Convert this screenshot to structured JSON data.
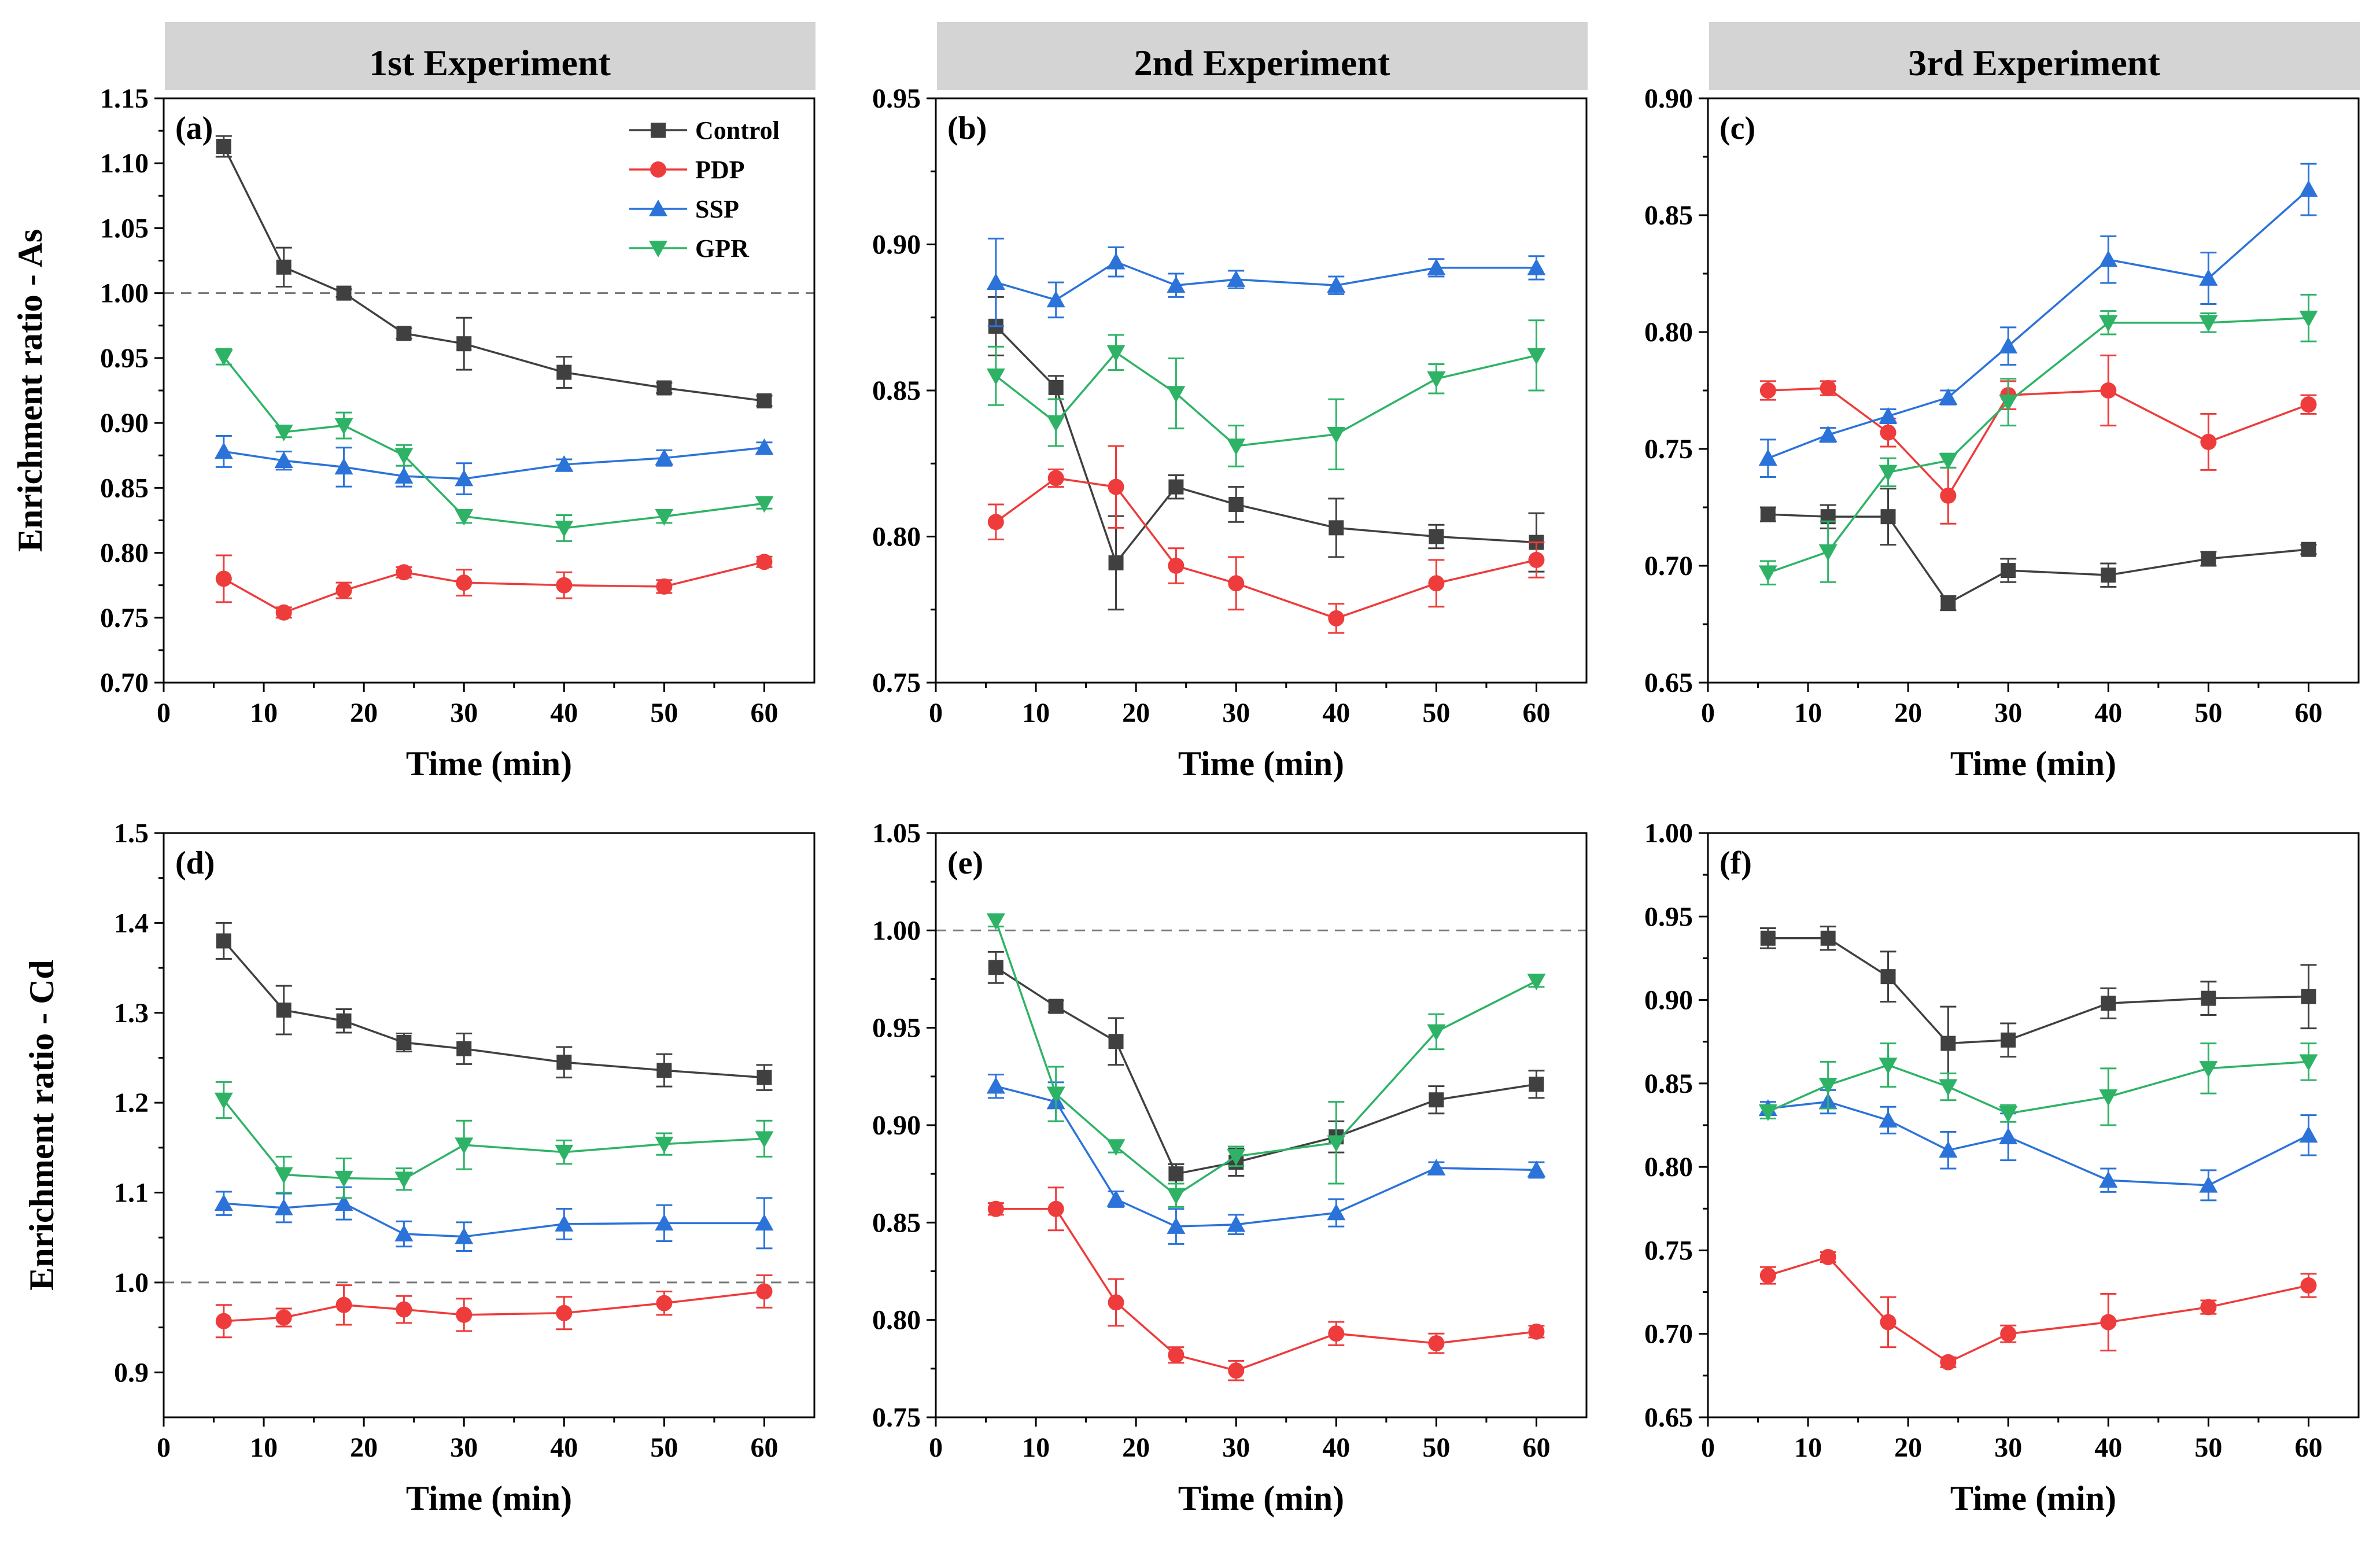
{
  "headers": [
    "1st Experiment",
    "2nd Experiment",
    "3rd Experiment"
  ],
  "colors": {
    "Control": "#404040",
    "PDP": "#ee3b3b",
    "SSP": "#2b73d9",
    "GPR": "#2eb366"
  },
  "chart_data": [
    {
      "type": "line",
      "label": "(a)",
      "ylabel": "Enrichment ratio - As",
      "xlabel": "Time (min)",
      "xlim": [
        0,
        65
      ],
      "ylim": [
        0.7,
        1.15
      ],
      "refline": 1.0,
      "xticks": [
        0,
        10,
        20,
        30,
        40,
        50,
        60
      ],
      "xtick_labels": [
        "0",
        "10",
        "20",
        "30",
        "40",
        "50",
        "60"
      ],
      "yticks": [
        0.7,
        0.75,
        0.8,
        0.85,
        0.9,
        0.95,
        1.0,
        1.05,
        1.1,
        1.15
      ],
      "ytick_labels": [
        "0.70",
        "0.75",
        "0.80",
        "0.85",
        "0.90",
        "0.95",
        "1.00",
        "1.05",
        "1.10",
        "1.15"
      ],
      "legend": [
        "Control",
        "PDP",
        "SSP",
        "GPR"
      ],
      "x": [
        6,
        12,
        18,
        24,
        30,
        40,
        50,
        60
      ],
      "series": [
        {
          "name": "Control",
          "marker": "square",
          "values": [
            1.113,
            1.02,
            1.0,
            0.969,
            0.961,
            0.939,
            0.927,
            0.917
          ],
          "err": [
            0.008,
            0.015,
            0.003,
            0.004,
            0.02,
            0.012,
            0.004,
            0.004
          ]
        },
        {
          "name": "PDP",
          "marker": "circle",
          "values": [
            0.78,
            0.754,
            0.771,
            0.785,
            0.777,
            0.775,
            0.774,
            0.793
          ],
          "err": [
            0.018,
            0.004,
            0.006,
            0.004,
            0.01,
            0.01,
            0.005,
            0.004
          ]
        },
        {
          "name": "SSP",
          "marker": "triangle-up",
          "values": [
            0.878,
            0.871,
            0.866,
            0.859,
            0.857,
            0.868,
            0.873,
            0.881
          ],
          "err": [
            0.012,
            0.007,
            0.015,
            0.008,
            0.012,
            0.004,
            0.006,
            0.004
          ]
        },
        {
          "name": "GPR",
          "marker": "triangle-down",
          "values": [
            0.951,
            0.893,
            0.898,
            0.875,
            0.828,
            0.819,
            0.828,
            0.838
          ],
          "err": [
            0.006,
            0.004,
            0.01,
            0.008,
            0.005,
            0.01,
            0.005,
            0.004
          ]
        }
      ]
    },
    {
      "type": "line",
      "label": "(b)",
      "ylabel": "",
      "xlabel": "Time (min)",
      "xlim": [
        0,
        65
      ],
      "ylim": [
        0.75,
        0.95
      ],
      "refline": null,
      "xticks": [
        0,
        10,
        20,
        30,
        40,
        50,
        60
      ],
      "xtick_labels": [
        "0",
        "10",
        "20",
        "30",
        "40",
        "50",
        "60"
      ],
      "yticks": [
        0.75,
        0.8,
        0.85,
        0.9,
        0.95
      ],
      "ytick_labels": [
        "0.75",
        "0.80",
        "0.85",
        "0.90",
        "0.95"
      ],
      "legend": [],
      "x": [
        6,
        12,
        18,
        24,
        30,
        40,
        50,
        60
      ],
      "series": [
        {
          "name": "Control",
          "marker": "square",
          "values": [
            0.872,
            0.851,
            0.791,
            0.817,
            0.811,
            0.803,
            0.8,
            0.798
          ],
          "err": [
            0.01,
            0.004,
            0.016,
            0.004,
            0.006,
            0.01,
            0.004,
            0.01
          ]
        },
        {
          "name": "PDP",
          "marker": "circle",
          "values": [
            0.805,
            0.82,
            0.817,
            0.79,
            0.784,
            0.772,
            0.784,
            0.792
          ],
          "err": [
            0.006,
            0.003,
            0.014,
            0.006,
            0.009,
            0.005,
            0.008,
            0.006
          ]
        },
        {
          "name": "SSP",
          "marker": "triangle-up",
          "values": [
            0.887,
            0.881,
            0.894,
            0.886,
            0.888,
            0.886,
            0.892,
            0.892
          ],
          "err": [
            0.015,
            0.006,
            0.005,
            0.004,
            0.003,
            0.003,
            0.003,
            0.004
          ]
        },
        {
          "name": "GPR",
          "marker": "triangle-down",
          "values": [
            0.855,
            0.839,
            0.863,
            0.849,
            0.831,
            0.835,
            0.854,
            0.862
          ],
          "err": [
            0.01,
            0.008,
            0.006,
            0.012,
            0.007,
            0.012,
            0.005,
            0.012
          ]
        }
      ]
    },
    {
      "type": "line",
      "label": "(c)",
      "ylabel": "",
      "xlabel": "Time (min)",
      "xlim": [
        0,
        65
      ],
      "ylim": [
        0.65,
        0.9
      ],
      "refline": null,
      "xticks": [
        0,
        10,
        20,
        30,
        40,
        50,
        60
      ],
      "xtick_labels": [
        "0",
        "10",
        "20",
        "30",
        "40",
        "50",
        "60"
      ],
      "yticks": [
        0.65,
        0.7,
        0.75,
        0.8,
        0.85,
        0.9
      ],
      "ytick_labels": [
        "0.65",
        "0.70",
        "0.75",
        "0.80",
        "0.85",
        "0.90"
      ],
      "legend": [],
      "x": [
        6,
        12,
        18,
        24,
        30,
        40,
        50,
        60
      ],
      "series": [
        {
          "name": "Control",
          "marker": "square",
          "values": [
            0.722,
            0.721,
            0.721,
            0.684,
            0.698,
            0.696,
            0.703,
            0.707
          ],
          "err": [
            0.003,
            0.005,
            0.012,
            0.003,
            0.005,
            0.005,
            0.003,
            0.002
          ]
        },
        {
          "name": "PDP",
          "marker": "circle",
          "values": [
            0.775,
            0.776,
            0.757,
            0.73,
            0.773,
            0.775,
            0.753,
            0.769
          ],
          "err": [
            0.004,
            0.003,
            0.006,
            0.012,
            0.006,
            0.015,
            0.012,
            0.004
          ]
        },
        {
          "name": "SSP",
          "marker": "triangle-up",
          "values": [
            0.746,
            0.756,
            0.764,
            0.772,
            0.794,
            0.831,
            0.823,
            0.861
          ],
          "err": [
            0.008,
            0.003,
            0.003,
            0.003,
            0.008,
            0.01,
            0.011,
            0.011
          ]
        },
        {
          "name": "GPR",
          "marker": "triangle-down",
          "values": [
            0.697,
            0.706,
            0.74,
            0.745,
            0.77,
            0.804,
            0.804,
            0.806
          ],
          "err": [
            0.005,
            0.013,
            0.006,
            0.003,
            0.01,
            0.005,
            0.004,
            0.01
          ]
        }
      ]
    },
    {
      "type": "line",
      "label": "(d)",
      "ylabel": "Enrichment ratio - Cd",
      "xlabel": "Time (min)",
      "xlim": [
        0,
        65
      ],
      "ylim": [
        0.85,
        1.5
      ],
      "refline": 1.0,
      "xticks": [
        0,
        10,
        20,
        30,
        40,
        50,
        60
      ],
      "xtick_labels": [
        "0",
        "10",
        "20",
        "30",
        "40",
        "50",
        "60"
      ],
      "yticks": [
        0.9,
        1.0,
        1.1,
        1.2,
        1.3,
        1.4,
        1.5
      ],
      "ytick_labels": [
        "0.9",
        "1.0",
        "1.1",
        "1.2",
        "1.3",
        "1.4",
        "1.5"
      ],
      "legend": [],
      "x": [
        6,
        12,
        18,
        24,
        30,
        40,
        50,
        60
      ],
      "series": [
        {
          "name": "Control",
          "marker": "square",
          "values": [
            1.38,
            1.303,
            1.291,
            1.267,
            1.26,
            1.245,
            1.236,
            1.228
          ],
          "err": [
            0.02,
            0.027,
            0.013,
            0.01,
            0.017,
            0.017,
            0.018,
            0.014
          ]
        },
        {
          "name": "PDP",
          "marker": "circle",
          "values": [
            0.957,
            0.961,
            0.975,
            0.97,
            0.964,
            0.966,
            0.977,
            0.99
          ],
          "err": [
            0.018,
            0.01,
            0.022,
            0.015,
            0.018,
            0.018,
            0.013,
            0.018
          ]
        },
        {
          "name": "SSP",
          "marker": "triangle-up",
          "values": [
            1.088,
            1.083,
            1.088,
            1.054,
            1.051,
            1.065,
            1.066,
            1.066
          ],
          "err": [
            0.013,
            0.016,
            0.018,
            0.014,
            0.016,
            0.017,
            0.02,
            0.028
          ]
        },
        {
          "name": "GPR",
          "marker": "triangle-down",
          "values": [
            1.203,
            1.12,
            1.116,
            1.115,
            1.153,
            1.145,
            1.154,
            1.16
          ],
          "err": [
            0.02,
            0.02,
            0.022,
            0.012,
            0.027,
            0.013,
            0.012,
            0.02
          ]
        }
      ]
    },
    {
      "type": "line",
      "label": "(e)",
      "ylabel": "",
      "xlabel": "Time (min)",
      "xlim": [
        0,
        65
      ],
      "ylim": [
        0.75,
        1.05
      ],
      "refline": 1.0,
      "xticks": [
        0,
        10,
        20,
        30,
        40,
        50,
        60
      ],
      "xtick_labels": [
        "0",
        "10",
        "20",
        "30",
        "40",
        "50",
        "60"
      ],
      "yticks": [
        0.75,
        0.8,
        0.85,
        0.9,
        0.95,
        1.0,
        1.05
      ],
      "ytick_labels": [
        "0.75",
        "0.80",
        "0.85",
        "0.90",
        "0.95",
        "1.00",
        "1.05"
      ],
      "legend": [],
      "x": [
        6,
        12,
        18,
        24,
        30,
        40,
        50,
        60
      ],
      "series": [
        {
          "name": "Control",
          "marker": "square",
          "values": [
            0.981,
            0.961,
            0.943,
            0.875,
            0.881,
            0.894,
            0.913,
            0.921
          ],
          "err": [
            0.008,
            0.003,
            0.012,
            0.005,
            0.007,
            0.008,
            0.007,
            0.007
          ]
        },
        {
          "name": "PDP",
          "marker": "circle",
          "values": [
            0.857,
            0.857,
            0.809,
            0.782,
            0.774,
            0.793,
            0.788,
            0.794
          ],
          "err": [
            0.003,
            0.011,
            0.012,
            0.004,
            0.005,
            0.006,
            0.005,
            0.003
          ]
        },
        {
          "name": "SSP",
          "marker": "triangle-up",
          "values": [
            0.92,
            0.912,
            0.862,
            0.848,
            0.849,
            0.855,
            0.878,
            0.877
          ],
          "err": [
            0.006,
            0.01,
            0.004,
            0.009,
            0.005,
            0.007,
            0.003,
            0.004
          ]
        },
        {
          "name": "GPR",
          "marker": "triangle-down",
          "values": [
            1.005,
            0.916,
            0.889,
            0.864,
            0.884,
            0.891,
            0.948,
            0.974
          ],
          "err": [
            0.003,
            0.014,
            0.003,
            0.006,
            0.005,
            0.021,
            0.009,
            0.003
          ]
        }
      ]
    },
    {
      "type": "line",
      "label": "(f)",
      "ylabel": "",
      "xlabel": "Time (min)",
      "xlim": [
        0,
        65
      ],
      "ylim": [
        0.65,
        1.0
      ],
      "refline": null,
      "xticks": [
        0,
        10,
        20,
        30,
        40,
        50,
        60
      ],
      "xtick_labels": [
        "0",
        "10",
        "20",
        "30",
        "40",
        "50",
        "60"
      ],
      "yticks": [
        0.65,
        0.7,
        0.75,
        0.8,
        0.85,
        0.9,
        0.95,
        1.0
      ],
      "ytick_labels": [
        "0.65",
        "0.70",
        "0.75",
        "0.80",
        "0.85",
        "0.90",
        "0.95",
        "1.00"
      ],
      "legend": [],
      "x": [
        6,
        12,
        18,
        24,
        30,
        40,
        50,
        60
      ],
      "series": [
        {
          "name": "Control",
          "marker": "square",
          "values": [
            0.937,
            0.937,
            0.914,
            0.874,
            0.876,
            0.898,
            0.901,
            0.902
          ],
          "err": [
            0.006,
            0.007,
            0.015,
            0.022,
            0.01,
            0.009,
            0.01,
            0.019
          ]
        },
        {
          "name": "PDP",
          "marker": "circle",
          "values": [
            0.735,
            0.746,
            0.707,
            0.683,
            0.7,
            0.707,
            0.716,
            0.729
          ],
          "err": [
            0.005,
            0.003,
            0.015,
            0.003,
            0.005,
            0.017,
            0.004,
            0.007
          ]
        },
        {
          "name": "SSP",
          "marker": "triangle-up",
          "values": [
            0.835,
            0.839,
            0.828,
            0.81,
            0.818,
            0.792,
            0.789,
            0.819
          ],
          "err": [
            0.004,
            0.007,
            0.008,
            0.011,
            0.014,
            0.007,
            0.009,
            0.012
          ]
        },
        {
          "name": "GPR",
          "marker": "triangle-down",
          "values": [
            0.833,
            0.849,
            0.861,
            0.848,
            0.832,
            0.842,
            0.859,
            0.863
          ],
          "err": [
            0.004,
            0.014,
            0.013,
            0.008,
            0.005,
            0.017,
            0.015,
            0.011
          ]
        }
      ]
    }
  ]
}
